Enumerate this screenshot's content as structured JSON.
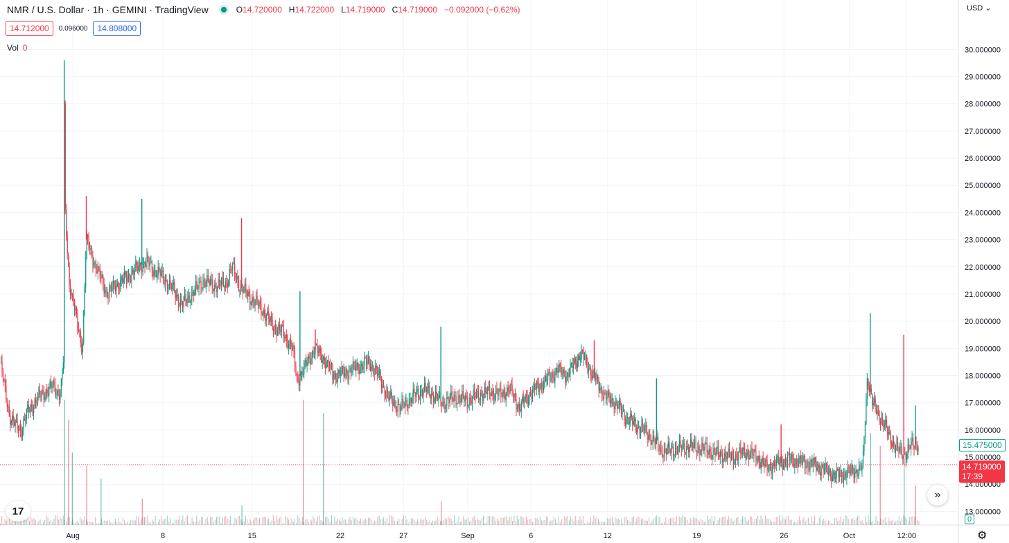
{
  "header": {
    "symbol": "NMR / U.S. Dollar · 1h · GEMINI · TradingView",
    "o_label": "O",
    "o": "14.720000",
    "h_label": "H",
    "h": "14.722000",
    "l_label": "L",
    "l": "14.719000",
    "c_label": "C",
    "c": "14.719000",
    "change": "−0.092000 (−0.62%)",
    "bid": "14.712000",
    "spread": "0.096000",
    "ask": "14.808000",
    "vol_label": "Vol",
    "vol_value": "0",
    "currency": "USD"
  },
  "price_tags": {
    "high_marker": "15.475000",
    "last_price": "14.719000",
    "countdown": "17:39",
    "volume_tag": "0"
  },
  "colors": {
    "up": "#089981",
    "down": "#f23645",
    "grid": "#f0f3fa",
    "text": "#131722"
  },
  "icons": {
    "logo": "tradingview-logo-icon",
    "scroll": "chevron-double-right-icon",
    "settings": "gear-icon"
  },
  "chart_data": {
    "type": "line",
    "title": "NMR / U.S. Dollar · 1h · GEMINI · TradingView",
    "xlabel": "",
    "ylabel": "",
    "ylim": [
      12.5,
      30.8
    ],
    "x_ticks": [
      "Aug",
      "8",
      "15",
      "22",
      "27",
      "Sep",
      "6",
      "12",
      "19",
      "26",
      "Oct",
      "12:00"
    ],
    "y_ticks": [
      "13.000000",
      "14.000000",
      "15.000000",
      "16.000000",
      "17.000000",
      "18.000000",
      "19.000000",
      "20.000000",
      "21.000000",
      "22.000000",
      "23.000000",
      "24.000000",
      "25.000000",
      "26.000000",
      "27.000000",
      "28.000000",
      "29.000000",
      "30.000000"
    ],
    "grid": true,
    "last_price_line": 14.719,
    "series": [
      {
        "values": [
          [
            0.0,
            18.5
          ],
          [
            0.01,
            16.5
          ],
          [
            0.015,
            16.2
          ],
          [
            0.022,
            16.0
          ],
          [
            0.028,
            16.6
          ],
          [
            0.04,
            17.2
          ],
          [
            0.055,
            17.6
          ],
          [
            0.063,
            17.3
          ],
          [
            0.066,
            18.5
          ],
          [
            0.067,
            28.0
          ],
          [
            0.068,
            24.0
          ],
          [
            0.072,
            21.5
          ],
          [
            0.08,
            20.0
          ],
          [
            0.086,
            19.0
          ],
          [
            0.09,
            23.0
          ],
          [
            0.1,
            22.0
          ],
          [
            0.112,
            21.0
          ],
          [
            0.12,
            21.3
          ],
          [
            0.132,
            21.6
          ],
          [
            0.145,
            22.0
          ],
          [
            0.153,
            22.2
          ],
          [
            0.16,
            21.9
          ],
          [
            0.168,
            21.7
          ],
          [
            0.18,
            21.2
          ],
          [
            0.19,
            20.6
          ],
          [
            0.2,
            21.0
          ],
          [
            0.212,
            21.5
          ],
          [
            0.224,
            21.3
          ],
          [
            0.236,
            21.4
          ],
          [
            0.242,
            22.0
          ],
          [
            0.25,
            21.3
          ],
          [
            0.26,
            20.9
          ],
          [
            0.272,
            20.5
          ],
          [
            0.285,
            19.8
          ],
          [
            0.295,
            19.6
          ],
          [
            0.305,
            19.0
          ],
          [
            0.31,
            17.8
          ],
          [
            0.318,
            18.3
          ],
          [
            0.328,
            19.0
          ],
          [
            0.338,
            18.6
          ],
          [
            0.348,
            18.0
          ],
          [
            0.36,
            18.1
          ],
          [
            0.372,
            18.3
          ],
          [
            0.385,
            18.5
          ],
          [
            0.395,
            18.0
          ],
          [
            0.405,
            17.2
          ],
          [
            0.418,
            16.8
          ],
          [
            0.43,
            17.2
          ],
          [
            0.442,
            17.5
          ],
          [
            0.452,
            17.3
          ],
          [
            0.462,
            17.0
          ],
          [
            0.475,
            17.2
          ],
          [
            0.488,
            17.1
          ],
          [
            0.5,
            17.3
          ],
          [
            0.512,
            17.4
          ],
          [
            0.522,
            17.3
          ],
          [
            0.532,
            17.5
          ],
          [
            0.542,
            16.8
          ],
          [
            0.552,
            17.3
          ],
          [
            0.562,
            17.6
          ],
          [
            0.572,
            17.9
          ],
          [
            0.582,
            18.2
          ],
          [
            0.592,
            18.0
          ],
          [
            0.6,
            18.5
          ],
          [
            0.606,
            18.8
          ],
          [
            0.613,
            18.4
          ],
          [
            0.622,
            17.8
          ],
          [
            0.632,
            17.2
          ],
          [
            0.642,
            17.0
          ],
          [
            0.652,
            16.5
          ],
          [
            0.662,
            16.2
          ],
          [
            0.672,
            16.0
          ],
          [
            0.682,
            15.6
          ],
          [
            0.692,
            15.2
          ],
          [
            0.705,
            15.3
          ],
          [
            0.72,
            15.4
          ],
          [
            0.735,
            15.3
          ],
          [
            0.75,
            15.1
          ],
          [
            0.765,
            15.0
          ],
          [
            0.778,
            15.2
          ],
          [
            0.79,
            15.0
          ],
          [
            0.8,
            14.6
          ],
          [
            0.812,
            14.8
          ],
          [
            0.825,
            14.9
          ],
          [
            0.838,
            14.8
          ],
          [
            0.85,
            14.7
          ],
          [
            0.862,
            14.5
          ],
          [
            0.872,
            14.3
          ],
          [
            0.882,
            14.4
          ],
          [
            0.893,
            14.5
          ],
          [
            0.9,
            14.6
          ],
          [
            0.905,
            18.0
          ],
          [
            0.91,
            17.0
          ],
          [
            0.918,
            16.5
          ],
          [
            0.925,
            16.0
          ],
          [
            0.935,
            15.3
          ],
          [
            0.945,
            15.1
          ],
          [
            0.952,
            15.5
          ],
          [
            0.958,
            15.475
          ]
        ]
      }
    ],
    "spikes": [
      [
        0.067,
        29.6
      ],
      [
        0.09,
        24.6
      ],
      [
        0.148,
        24.5
      ],
      [
        0.252,
        23.8
      ],
      [
        0.313,
        21.1
      ],
      [
        0.329,
        19.7
      ],
      [
        0.46,
        19.8
      ],
      [
        0.62,
        19.3
      ],
      [
        0.685,
        17.9
      ],
      [
        0.815,
        16.2
      ],
      [
        0.908,
        20.3
      ],
      [
        0.943,
        19.5
      ],
      [
        0.955,
        16.9
      ]
    ],
    "volume": [
      [
        0.067,
        0.95
      ],
      [
        0.071,
        0.8
      ],
      [
        0.075,
        0.55
      ],
      [
        0.09,
        0.45
      ],
      [
        0.105,
        0.35
      ],
      [
        0.148,
        0.2
      ],
      [
        0.252,
        0.15
      ],
      [
        0.316,
        0.95
      ],
      [
        0.337,
        0.85
      ],
      [
        0.46,
        0.18
      ],
      [
        0.908,
        0.7
      ],
      [
        0.918,
        0.6
      ],
      [
        0.943,
        0.5
      ],
      [
        0.955,
        0.3
      ]
    ]
  }
}
